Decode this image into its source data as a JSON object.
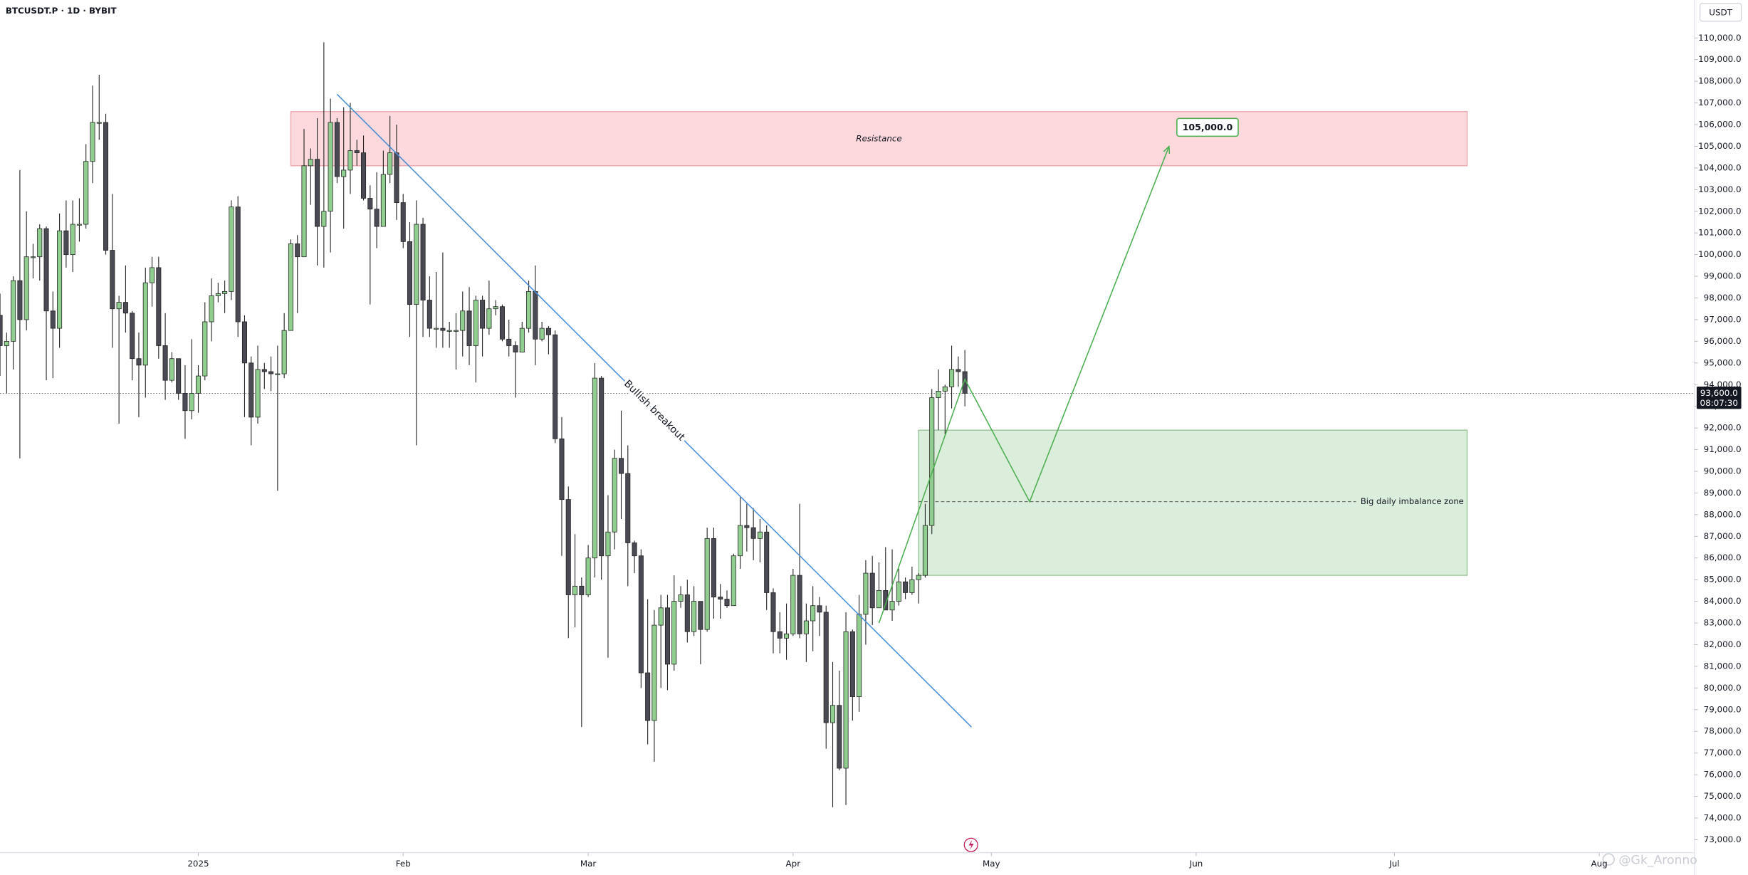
{
  "chart_data": {
    "type": "candlestick",
    "title": "BTCUSDT.P · 1D · BYBIT",
    "currency": "USDT",
    "up_color": "#8fce8f",
    "down_color": "#4a4a55",
    "xlim": [
      -30,
      226.4
    ],
    "xticks": [
      {
        "value": 0,
        "label": "2025"
      },
      {
        "value": 31,
        "label": "Feb"
      },
      {
        "value": 59,
        "label": "Mar"
      },
      {
        "value": 90,
        "label": "Apr"
      },
      {
        "value": 120,
        "label": "May"
      },
      {
        "value": 151,
        "label": "Jun"
      },
      {
        "value": 181,
        "label": "Jul"
      },
      {
        "value": 212,
        "label": "Aug"
      }
    ],
    "ylim": [
      72400,
      111750
    ],
    "yticks": [
      {
        "value": 73000,
        "label": "73,000.0"
      },
      {
        "value": 74000,
        "label": "74,000.0"
      },
      {
        "value": 75000,
        "label": "75,000.0"
      },
      {
        "value": 76000,
        "label": "76,000.0"
      },
      {
        "value": 77000,
        "label": "77,000.0"
      },
      {
        "value": 78000,
        "label": "78,000.0"
      },
      {
        "value": 79000,
        "label": "79,000.0"
      },
      {
        "value": 80000,
        "label": "80,000.0"
      },
      {
        "value": 81000,
        "label": "81,000.0"
      },
      {
        "value": 82000,
        "label": "82,000.0"
      },
      {
        "value": 83000,
        "label": "83,000.0"
      },
      {
        "value": 84000,
        "label": "84,000.0"
      },
      {
        "value": 85000,
        "label": "85,000.0"
      },
      {
        "value": 86000,
        "label": "86,000.0"
      },
      {
        "value": 87000,
        "label": "87,000.0"
      },
      {
        "value": 88000,
        "label": "88,000.0"
      },
      {
        "value": 89000,
        "label": "89,000.0"
      },
      {
        "value": 90000,
        "label": "90,000.0"
      },
      {
        "value": 91000,
        "label": "91,000.0"
      },
      {
        "value": 92000,
        "label": "92,000.0"
      },
      {
        "value": 93000,
        "label": "93,000.0"
      },
      {
        "value": 94000,
        "label": "94,000.0"
      },
      {
        "value": 95000,
        "label": "95,000.0"
      },
      {
        "value": 96000,
        "label": "96,000.0"
      },
      {
        "value": 97000,
        "label": "97,000.0"
      },
      {
        "value": 98000,
        "label": "98,000.0"
      },
      {
        "value": 99000,
        "label": "99,000.0"
      },
      {
        "value": 100000,
        "label": "100,000.0"
      },
      {
        "value": 101000,
        "label": "101,000.0"
      },
      {
        "value": 102000,
        "label": "102,000.0"
      },
      {
        "value": 103000,
        "label": "103,000.0"
      },
      {
        "value": 104000,
        "label": "104,000.0"
      },
      {
        "value": 105000,
        "label": "105,000.0"
      },
      {
        "value": 106000,
        "label": "106,000.0"
      },
      {
        "value": 107000,
        "label": "107,000.0"
      },
      {
        "value": 108000,
        "label": "108,000.0"
      },
      {
        "value": 109000,
        "label": "109,000.0"
      },
      {
        "value": 110000,
        "label": "110,000.0"
      }
    ],
    "x": [
      -30,
      -29,
      -28,
      -27,
      -26,
      -25,
      -24,
      -23,
      -22,
      -21,
      -20,
      -19,
      -18,
      -17,
      -16,
      -15,
      -14,
      -13,
      -12,
      -11,
      -10,
      -9,
      -8,
      -7,
      -6,
      -5,
      -4,
      -3,
      -2,
      -1,
      0,
      1,
      2,
      3,
      4,
      5,
      6,
      7,
      8,
      9,
      10,
      11,
      12,
      13,
      14,
      15,
      16,
      17,
      18,
      19,
      20,
      21,
      22,
      23,
      24,
      25,
      26,
      27,
      28,
      29,
      30,
      31,
      32,
      33,
      34,
      35,
      36,
      37,
      38,
      39,
      40,
      41,
      42,
      43,
      44,
      45,
      46,
      47,
      48,
      49,
      50,
      51,
      52,
      53,
      54,
      55,
      56,
      57,
      58,
      59,
      60,
      61,
      62,
      63,
      64,
      65,
      66,
      67,
      68,
      69,
      70,
      71,
      72,
      73,
      74,
      75,
      76,
      77,
      78,
      79,
      80,
      81,
      82,
      83,
      84,
      85,
      86,
      87,
      88,
      89,
      90,
      91,
      92,
      93,
      94,
      95,
      96,
      97,
      98,
      99,
      100,
      101,
      102,
      103,
      104,
      105,
      106,
      107,
      108,
      109,
      110,
      111,
      112,
      113,
      114,
      115,
      116
    ],
    "ohlc": [
      [
        97200,
        98200,
        94400,
        95800
      ],
      [
        95800,
        96400,
        93600,
        96000
      ],
      [
        96000,
        99000,
        94700,
        98800
      ],
      [
        98800,
        103900,
        90600,
        97000
      ],
      [
        97000,
        102000,
        96500,
        99900
      ],
      [
        99900,
        100500,
        98900,
        99900
      ],
      [
        99900,
        101400,
        98800,
        101200
      ],
      [
        101200,
        101300,
        94200,
        97400
      ],
      [
        97400,
        98300,
        94300,
        96600
      ],
      [
        96600,
        101900,
        95700,
        101100
      ],
      [
        101100,
        102500,
        99400,
        100000
      ],
      [
        100000,
        102500,
        99200,
        101400
      ],
      [
        101400,
        102600,
        100600,
        101400
      ],
      [
        101400,
        105100,
        101200,
        104300
      ],
      [
        104300,
        107800,
        103300,
        106100
      ],
      [
        106100,
        108300,
        105300,
        106100
      ],
      [
        106100,
        106500,
        100000,
        100200
      ],
      [
        100200,
        102800,
        95700,
        97500
      ],
      [
        97500,
        98100,
        92200,
        97800
      ],
      [
        97800,
        99500,
        96400,
        97300
      ],
      [
        97300,
        97400,
        94200,
        95200
      ],
      [
        95200,
        96400,
        92500,
        94900
      ],
      [
        94900,
        99400,
        93400,
        98700
      ],
      [
        98700,
        99900,
        97600,
        99400
      ],
      [
        99400,
        99900,
        95200,
        95800
      ],
      [
        95800,
        97300,
        93300,
        94200
      ],
      [
        94200,
        95500,
        94100,
        95200
      ],
      [
        95200,
        95200,
        93300,
        93600
      ],
      [
        93600,
        94900,
        91500,
        92800
      ],
      [
        92800,
        96100,
        92400,
        93600
      ],
      [
        93600,
        94900,
        92700,
        94400
      ],
      [
        94400,
        97800,
        94200,
        96900
      ],
      [
        96900,
        98900,
        96000,
        98100
      ],
      [
        98100,
        98700,
        97800,
        98200
      ],
      [
        98200,
        98800,
        97300,
        98300
      ],
      [
        98300,
        102500,
        97900,
        102200
      ],
      [
        102200,
        102700,
        96200,
        96900
      ],
      [
        96900,
        97200,
        92500,
        95000
      ],
      [
        95000,
        95300,
        91200,
        92500
      ],
      [
        92500,
        95800,
        92200,
        94700
      ],
      [
        94700,
        95000,
        93800,
        94600
      ],
      [
        94600,
        95300,
        93700,
        94500
      ],
      [
        94500,
        95800,
        89100,
        94500
      ],
      [
        94500,
        97300,
        94300,
        96500
      ],
      [
        96500,
        100700,
        96500,
        100500
      ],
      [
        100500,
        100900,
        97300,
        99900
      ],
      [
        99900,
        105800,
        99900,
        104100
      ],
      [
        104100,
        104900,
        102300,
        104400
      ],
      [
        104400,
        106300,
        99500,
        101300
      ],
      [
        101300,
        109800,
        99400,
        102000
      ],
      [
        102000,
        107200,
        100100,
        106100
      ],
      [
        106100,
        106300,
        103300,
        103600
      ],
      [
        103600,
        106800,
        101200,
        103900
      ],
      [
        103900,
        107000,
        102800,
        104800
      ],
      [
        104800,
        105300,
        104100,
        104700
      ],
      [
        104700,
        105500,
        102500,
        102600
      ],
      [
        102600,
        103200,
        97700,
        102100
      ],
      [
        102100,
        103800,
        100300,
        101300
      ],
      [
        101300,
        104800,
        101300,
        103700
      ],
      [
        103700,
        106400,
        103300,
        104700
      ],
      [
        104700,
        106000,
        101600,
        102400
      ],
      [
        102400,
        102800,
        100300,
        100600
      ],
      [
        100600,
        101500,
        96200,
        97700
      ],
      [
        97700,
        102500,
        91200,
        101400
      ],
      [
        101400,
        101700,
        96200,
        97900
      ],
      [
        97900,
        99000,
        96200,
        96600
      ],
      [
        96600,
        99200,
        95700,
        96600
      ],
      [
        96600,
        100100,
        95700,
        96500
      ],
      [
        96500,
        96900,
        95700,
        96500
      ],
      [
        96500,
        97300,
        94700,
        96500
      ],
      [
        96500,
        98300,
        95300,
        97400
      ],
      [
        97400,
        98500,
        94900,
        95800
      ],
      [
        95800,
        98100,
        94100,
        97900
      ],
      [
        97900,
        98100,
        95300,
        96600
      ],
      [
        96600,
        98800,
        96300,
        97500
      ],
      [
        97500,
        97900,
        97200,
        97600
      ],
      [
        97600,
        97700,
        96000,
        96100
      ],
      [
        96100,
        97000,
        95300,
        95800
      ],
      [
        95800,
        96000,
        93400,
        95500
      ],
      [
        95500,
        96900,
        95500,
        96600
      ],
      [
        96600,
        98800,
        96400,
        98300
      ],
      [
        98300,
        99500,
        94900,
        96100
      ],
      [
        96100,
        96900,
        96000,
        96600
      ],
      [
        96600,
        96700,
        95400,
        96300
      ],
      [
        96300,
        96500,
        91300,
        91500
      ],
      [
        91500,
        92500,
        86100,
        88700
      ],
      [
        88700,
        89300,
        82300,
        84300
      ],
      [
        84300,
        87100,
        82800,
        84700
      ],
      [
        84700,
        85100,
        78200,
        84300
      ],
      [
        84300,
        86600,
        84200,
        86000
      ],
      [
        86000,
        95000,
        85100,
        94300
      ],
      [
        94300,
        94400,
        85000,
        86100
      ],
      [
        86100,
        88900,
        81400,
        87200
      ],
      [
        87200,
        91000,
        86400,
        90600
      ],
      [
        90600,
        92800,
        87800,
        89900
      ],
      [
        89900,
        91200,
        84700,
        86700
      ],
      [
        86700,
        86800,
        85300,
        86100
      ],
      [
        86100,
        86400,
        80000,
        80700
      ],
      [
        80700,
        84100,
        77400,
        78500
      ],
      [
        78500,
        83600,
        76600,
        82900
      ],
      [
        82900,
        84300,
        80000,
        83700
      ],
      [
        83700,
        84300,
        79900,
        81100
      ],
      [
        81100,
        85200,
        80800,
        84000
      ],
      [
        84000,
        84700,
        83700,
        84300
      ],
      [
        84300,
        85000,
        82100,
        82600
      ],
      [
        82600,
        84700,
        82400,
        84000
      ],
      [
        84000,
        84000,
        81100,
        82700
      ],
      [
        82700,
        87400,
        82600,
        86900
      ],
      [
        86900,
        87400,
        83200,
        84200
      ],
      [
        84200,
        84800,
        83200,
        84100
      ],
      [
        84100,
        84500,
        83700,
        83800
      ],
      [
        83800,
        86200,
        83800,
        86100
      ],
      [
        86100,
        88800,
        85500,
        87500
      ],
      [
        87500,
        88500,
        86300,
        87400
      ],
      [
        87400,
        88300,
        85900,
        86900
      ],
      [
        86900,
        87800,
        85800,
        87200
      ],
      [
        87200,
        87500,
        83600,
        84400
      ],
      [
        84400,
        84600,
        81600,
        82600
      ],
      [
        82600,
        83500,
        81600,
        82300
      ],
      [
        82300,
        83900,
        81300,
        82500
      ],
      [
        82500,
        85500,
        82400,
        85200
      ],
      [
        85200,
        88500,
        82300,
        82500
      ],
      [
        82500,
        83900,
        81200,
        83100
      ],
      [
        83100,
        84700,
        81700,
        83800
      ],
      [
        83800,
        84200,
        82400,
        83500
      ],
      [
        83500,
        83800,
        77200,
        78400
      ],
      [
        78400,
        81200,
        74500,
        79200
      ],
      [
        79200,
        80800,
        76200,
        76300
      ],
      [
        76300,
        83500,
        74600,
        82600
      ],
      [
        82600,
        82700,
        78500,
        79600
      ],
      [
        79600,
        84300,
        78900,
        83400
      ],
      [
        83400,
        85900,
        82000,
        85300
      ],
      [
        85300,
        86100,
        82900,
        83700
      ],
      [
        83700,
        85800,
        83700,
        84500
      ],
      [
        84500,
        86500,
        83600,
        83600
      ],
      [
        83600,
        86400,
        83100,
        84000
      ],
      [
        84000,
        85500,
        83800,
        84900
      ],
      [
        84900,
        85100,
        84100,
        84400
      ],
      [
        84400,
        85600,
        84300,
        85000
      ],
      [
        85000,
        85300,
        83900,
        85200
      ],
      [
        85200,
        88500,
        85100,
        87500
      ],
      [
        87500,
        93800,
        87100,
        93400
      ],
      [
        93400,
        94700,
        91900,
        93700
      ],
      [
        93700,
        94000,
        91700,
        93900
      ],
      [
        93900,
        95800,
        92900,
        94700
      ],
      [
        94700,
        95300,
        93900,
        94600
      ],
      [
        94600,
        95600,
        93000,
        93600
      ]
    ],
    "last_price": {
      "value": 93600,
      "label": "93,600.0"
    },
    "countdown": "08:07:30",
    "resistance": {
      "text": "Resistance",
      "x": [
        14,
        192
      ],
      "y": [
        104100,
        106600
      ],
      "color": "#fdd9dd",
      "border": "#e8a0a6"
    },
    "imbalance": {
      "text": "Big daily imbalance zone",
      "x": [
        109,
        192
      ],
      "y": [
        85200,
        91900
      ],
      "mid": 88600,
      "color": "#dbeedb",
      "border": "#8fbf8c"
    },
    "trendline": {
      "text": "Bullish breakout",
      "x": [
        21,
        117
      ],
      "y": [
        107400,
        78200
      ],
      "color": "#4a90d9"
    },
    "projection": {
      "x": [
        103,
        116,
        125.8,
        146.9
      ],
      "y": [
        83000,
        94250,
        88600,
        105000
      ],
      "label": "105,000.0",
      "color": "#4caf50"
    },
    "watermark": "@Gk_Aronno"
  }
}
